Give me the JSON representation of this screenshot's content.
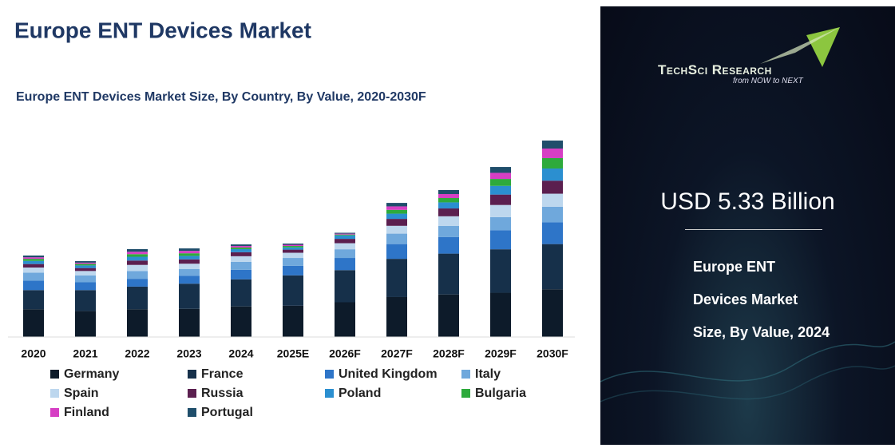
{
  "chart_data": {
    "type": "bar",
    "stacked": true,
    "title": "Europe ENT Devices Market",
    "subtitle": "Europe ENT Devices Market Size, By Country, By Value, 2020-2030F",
    "categories": [
      "2020",
      "2021",
      "2022",
      "2023",
      "2024",
      "2025E",
      "2026F",
      "2027F",
      "2028F",
      "2029F",
      "2030F"
    ],
    "series": [
      {
        "name": "Germany",
        "color": "#0d1b2a",
        "values": [
          1.6,
          1.5,
          1.6,
          1.62,
          1.76,
          1.8,
          2.0,
          2.3,
          2.45,
          2.55,
          2.75
        ]
      },
      {
        "name": "France",
        "color": "#16304a",
        "values": [
          1.1,
          1.2,
          1.3,
          1.45,
          1.56,
          1.75,
          1.85,
          2.2,
          2.35,
          2.5,
          2.6
        ]
      },
      {
        "name": "United Kingdom",
        "color": "#2e75c8",
        "values": [
          0.55,
          0.45,
          0.45,
          0.45,
          0.55,
          0.55,
          0.7,
          0.85,
          0.95,
          1.1,
          1.25
        ]
      },
      {
        "name": "Italy",
        "color": "#6fa8dc",
        "values": [
          0.45,
          0.4,
          0.45,
          0.4,
          0.46,
          0.45,
          0.5,
          0.6,
          0.65,
          0.75,
          0.9
        ]
      },
      {
        "name": "Spain",
        "color": "#bdd7ee",
        "values": [
          0.3,
          0.25,
          0.35,
          0.3,
          0.32,
          0.3,
          0.35,
          0.45,
          0.55,
          0.7,
          0.75
        ]
      },
      {
        "name": "Russia",
        "color": "#5b1f4f",
        "values": [
          0.2,
          0.17,
          0.25,
          0.25,
          0.23,
          0.18,
          0.25,
          0.4,
          0.45,
          0.6,
          0.75
        ]
      },
      {
        "name": "Poland",
        "color": "#2b8fd0",
        "values": [
          0.18,
          0.15,
          0.22,
          0.2,
          0.18,
          0.13,
          0.2,
          0.3,
          0.35,
          0.5,
          0.7
        ]
      },
      {
        "name": "Bulgaria",
        "color": "#2eaa3c",
        "values": [
          0.12,
          0.09,
          0.15,
          0.15,
          0.09,
          0.08,
          0.05,
          0.22,
          0.25,
          0.4,
          0.6
        ]
      },
      {
        "name": "Finland",
        "color": "#d63fc4",
        "values": [
          0.09,
          0.07,
          0.14,
          0.14,
          0.09,
          0.07,
          0.05,
          0.2,
          0.23,
          0.35,
          0.55
        ]
      },
      {
        "name": "Portugal",
        "color": "#1f4e6b",
        "values": [
          0.1,
          0.09,
          0.15,
          0.14,
          0.09,
          0.07,
          0.05,
          0.2,
          0.23,
          0.34,
          0.46
        ]
      }
    ]
  },
  "panel": {
    "logo": "TechSci Research",
    "tagline": "from NOW to NEXT",
    "headline": "USD 5.33 Billion",
    "description": "Europe ENT Devices Market Size, By Value, 2024"
  }
}
